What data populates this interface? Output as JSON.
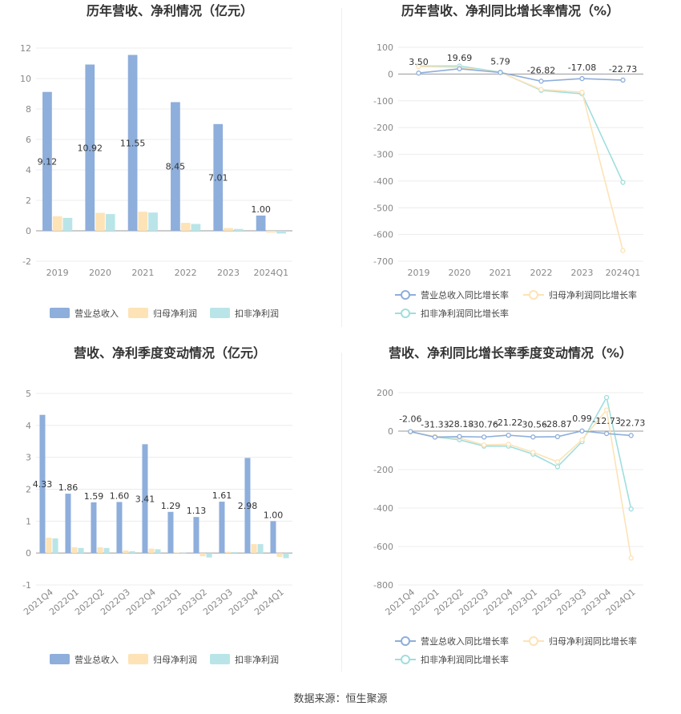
{
  "source": "数据来源：恒生聚源",
  "chart_data": [
    {
      "id": "c1",
      "type": "bar",
      "title": "历年营收、净利情况（亿元）",
      "categories": [
        "2019",
        "2020",
        "2021",
        "2022",
        "2023",
        "2024Q1"
      ],
      "ylim": [
        -2,
        12
      ],
      "yticks": [
        -2,
        0,
        2,
        4,
        6,
        8,
        10,
        12
      ],
      "label_series": 0,
      "data_labels": [
        "9.12",
        "10.92",
        "11.55",
        "8.45",
        "7.01",
        "1.00"
      ],
      "series": [
        {
          "name": "营业总收入",
          "color": "#8eaedb",
          "values": [
            9.12,
            10.92,
            11.55,
            8.45,
            7.01,
            1.0
          ]
        },
        {
          "name": "归母净利润",
          "color": "#fde3b6",
          "values": [
            0.95,
            1.18,
            1.25,
            0.52,
            0.18,
            -0.12
          ]
        },
        {
          "name": "扣非净利润",
          "color": "#b9e5e8",
          "values": [
            0.85,
            1.1,
            1.2,
            0.45,
            0.12,
            -0.18
          ]
        }
      ]
    },
    {
      "id": "c2",
      "type": "line",
      "title": "历年营收、净利同比增长率情况（%）",
      "categories": [
        "2019",
        "2020",
        "2021",
        "2022",
        "2023",
        "2024Q1"
      ],
      "ylim": [
        -700,
        100
      ],
      "yticks": [
        -700,
        -600,
        -500,
        -400,
        -300,
        -200,
        -100,
        0,
        100
      ],
      "label_series": 0,
      "data_labels": [
        "3.50",
        "19.69",
        "5.79",
        "-26.82",
        "-17.08",
        "-22.73"
      ],
      "series": [
        {
          "name": "营业总收入同比增长率",
          "color": "#8eaedb",
          "values": [
            3.5,
            19.69,
            5.79,
            -26.82,
            -17.08,
            -22.73
          ]
        },
        {
          "name": "归母净利润同比增长率",
          "color": "#fde3b6",
          "values": [
            28,
            25,
            6,
            -58,
            -68,
            -660
          ]
        },
        {
          "name": "扣非净利润同比增长率",
          "color": "#9fdede",
          "values": [
            30,
            30,
            7,
            -61,
            -74,
            -405
          ]
        }
      ]
    },
    {
      "id": "c3",
      "type": "bar",
      "title": "营收、净利季度变动情况（亿元）",
      "categories": [
        "2021Q4",
        "2022Q1",
        "2022Q2",
        "2022Q3",
        "2022Q4",
        "2023Q1",
        "2023Q2",
        "2023Q3",
        "2023Q4",
        "2024Q1"
      ],
      "ylim": [
        -1,
        5
      ],
      "yticks": [
        -1,
        0,
        1,
        2,
        3,
        4,
        5
      ],
      "label_series": 0,
      "data_labels": [
        "4.33",
        "1.86",
        "1.59",
        "1.60",
        "3.41",
        "1.29",
        "1.13",
        "1.61",
        "2.98",
        "1.00"
      ],
      "series": [
        {
          "name": "营业总收入",
          "color": "#8eaedb",
          "values": [
            4.33,
            1.86,
            1.59,
            1.6,
            3.41,
            1.29,
            1.13,
            1.61,
            2.98,
            1.0
          ]
        },
        {
          "name": "归母净利润",
          "color": "#fde3b6",
          "values": [
            0.48,
            0.18,
            0.18,
            0.08,
            0.14,
            0.02,
            -0.1,
            0.04,
            0.28,
            -0.12
          ]
        },
        {
          "name": "扣非净利润",
          "color": "#b9e5e8",
          "values": [
            0.46,
            0.16,
            0.16,
            0.06,
            0.12,
            0.01,
            -0.14,
            0.03,
            0.28,
            -0.16
          ]
        }
      ]
    },
    {
      "id": "c4",
      "type": "line",
      "title": "营收、净利同比增长率季度变动情况（%）",
      "categories": [
        "2021Q4",
        "2022Q1",
        "2022Q2",
        "2022Q3",
        "2022Q4",
        "2023Q1",
        "2023Q2",
        "2023Q3",
        "2023Q4",
        "2024Q1"
      ],
      "ylim": [
        -800,
        200
      ],
      "yticks": [
        -800,
        -600,
        -400,
        -200,
        0,
        200
      ],
      "label_series": 0,
      "data_labels": [
        "-2.06",
        "-31.33",
        "-28.18",
        "-30.76",
        "-21.22",
        "-30.56",
        "-28.87",
        "0.99",
        "-12.73",
        "-22.73"
      ],
      "series": [
        {
          "name": "营业总收入同比增长率",
          "color": "#8eaedb",
          "values": [
            -2.06,
            -31.33,
            -28.18,
            -30.76,
            -21.22,
            -30.56,
            -28.87,
            0.99,
            -12.73,
            -22.73
          ]
        },
        {
          "name": "归母净利润同比增长率",
          "color": "#fde3b6",
          "values": [
            -5,
            -28,
            -35,
            -72,
            -68,
            -110,
            -160,
            -45,
            110,
            -660
          ]
        },
        {
          "name": "扣非净利润同比增长率",
          "color": "#9fdede",
          "values": [
            -4,
            -30,
            -45,
            -78,
            -78,
            -120,
            -185,
            -55,
            175,
            -405
          ]
        }
      ]
    }
  ]
}
